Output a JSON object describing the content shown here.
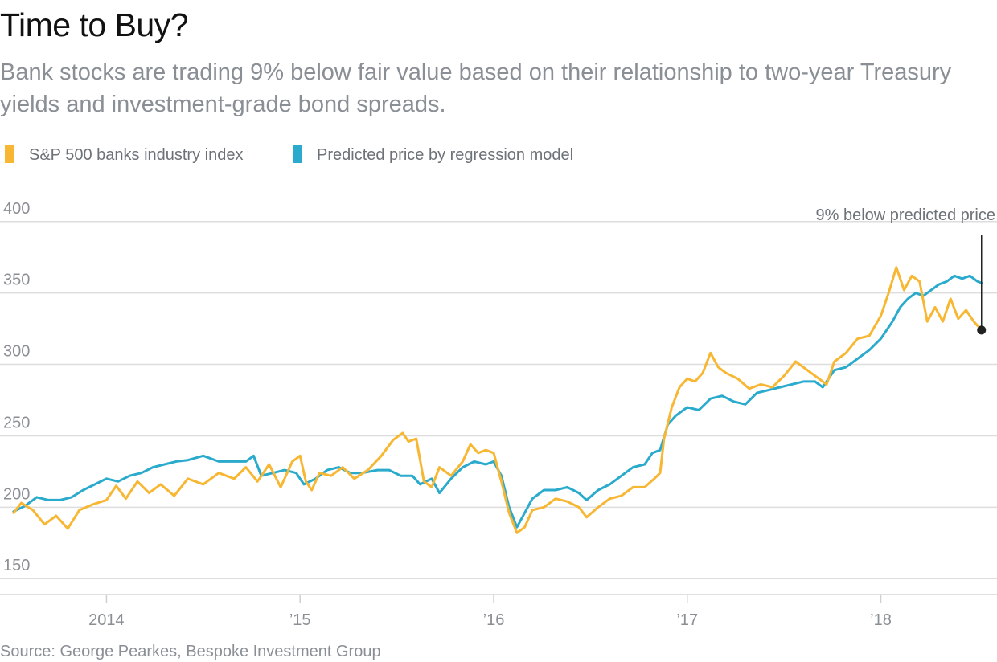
{
  "chart_data": {
    "type": "line",
    "title": "Time to Buy?",
    "subtitle": "Bank stocks are trading 9% below fair value based on their relationship to two-year Treasury yields and investment-grade bond spreads.",
    "source": "Source: George Pearkes, Bespoke Investment Group",
    "ylim": [
      140,
      410
    ],
    "y_ticks": [
      150,
      200,
      250,
      300,
      350,
      400
    ],
    "xlim": [
      2013.45,
      2018.6
    ],
    "x_ticks": [
      {
        "value": 2014,
        "label": "2014"
      },
      {
        "value": 2015,
        "label": "’15"
      },
      {
        "value": 2016,
        "label": "’16"
      },
      {
        "value": 2017,
        "label": "’17"
      },
      {
        "value": 2018,
        "label": "’18"
      }
    ],
    "grid": true,
    "legend_position": "top-left",
    "annotation": {
      "text": "9% below predicted price",
      "x": 2018.52,
      "y": 324
    },
    "series": [
      {
        "name": "S&P 500 banks industry index",
        "color": "#f7b733",
        "points": [
          [
            2013.52,
            196
          ],
          [
            2013.56,
            203
          ],
          [
            2013.62,
            198
          ],
          [
            2013.68,
            188
          ],
          [
            2013.74,
            194
          ],
          [
            2013.8,
            185
          ],
          [
            2013.86,
            198
          ],
          [
            2013.93,
            202
          ],
          [
            2014.0,
            205
          ],
          [
            2014.05,
            215
          ],
          [
            2014.1,
            206
          ],
          [
            2014.16,
            218
          ],
          [
            2014.22,
            210
          ],
          [
            2014.28,
            216
          ],
          [
            2014.35,
            208
          ],
          [
            2014.42,
            220
          ],
          [
            2014.5,
            216
          ],
          [
            2014.58,
            224
          ],
          [
            2014.66,
            220
          ],
          [
            2014.72,
            228
          ],
          [
            2014.78,
            218
          ],
          [
            2014.84,
            230
          ],
          [
            2014.9,
            214
          ],
          [
            2014.96,
            232
          ],
          [
            2015.0,
            236
          ],
          [
            2015.03,
            218
          ],
          [
            2015.06,
            212
          ],
          [
            2015.1,
            224
          ],
          [
            2015.16,
            222
          ],
          [
            2015.22,
            228
          ],
          [
            2015.28,
            220
          ],
          [
            2015.35,
            226
          ],
          [
            2015.42,
            236
          ],
          [
            2015.48,
            247
          ],
          [
            2015.53,
            252
          ],
          [
            2015.56,
            246
          ],
          [
            2015.6,
            248
          ],
          [
            2015.64,
            218
          ],
          [
            2015.68,
            214
          ],
          [
            2015.72,
            228
          ],
          [
            2015.78,
            222
          ],
          [
            2015.84,
            232
          ],
          [
            2015.88,
            244
          ],
          [
            2015.92,
            238
          ],
          [
            2015.96,
            240
          ],
          [
            2016.0,
            238
          ],
          [
            2016.04,
            218
          ],
          [
            2016.08,
            196
          ],
          [
            2016.12,
            182
          ],
          [
            2016.16,
            186
          ],
          [
            2016.2,
            198
          ],
          [
            2016.26,
            200
          ],
          [
            2016.32,
            206
          ],
          [
            2016.38,
            204
          ],
          [
            2016.44,
            200
          ],
          [
            2016.48,
            193
          ],
          [
            2016.54,
            200
          ],
          [
            2016.6,
            206
          ],
          [
            2016.66,
            208
          ],
          [
            2016.72,
            214
          ],
          [
            2016.78,
            214
          ],
          [
            2016.83,
            220
          ],
          [
            2016.86,
            224
          ],
          [
            2016.88,
            248
          ],
          [
            2016.92,
            270
          ],
          [
            2016.96,
            284
          ],
          [
            2017.0,
            290
          ],
          [
            2017.04,
            288
          ],
          [
            2017.08,
            294
          ],
          [
            2017.12,
            308
          ],
          [
            2017.16,
            298
          ],
          [
            2017.2,
            294
          ],
          [
            2017.26,
            290
          ],
          [
            2017.32,
            283
          ],
          [
            2017.38,
            286
          ],
          [
            2017.44,
            284
          ],
          [
            2017.5,
            292
          ],
          [
            2017.56,
            302
          ],
          [
            2017.62,
            296
          ],
          [
            2017.68,
            290
          ],
          [
            2017.72,
            286
          ],
          [
            2017.76,
            302
          ],
          [
            2017.82,
            308
          ],
          [
            2017.88,
            318
          ],
          [
            2017.94,
            320
          ],
          [
            2018.0,
            334
          ],
          [
            2018.04,
            350
          ],
          [
            2018.08,
            368
          ],
          [
            2018.12,
            352
          ],
          [
            2018.16,
            362
          ],
          [
            2018.2,
            358
          ],
          [
            2018.24,
            330
          ],
          [
            2018.28,
            340
          ],
          [
            2018.32,
            330
          ],
          [
            2018.36,
            346
          ],
          [
            2018.4,
            332
          ],
          [
            2018.44,
            338
          ],
          [
            2018.48,
            330
          ],
          [
            2018.52,
            324
          ]
        ]
      },
      {
        "name": "Predicted price by regression model",
        "color": "#2aaacc",
        "points": [
          [
            2013.52,
            197
          ],
          [
            2013.58,
            201
          ],
          [
            2013.64,
            207
          ],
          [
            2013.7,
            205
          ],
          [
            2013.76,
            205
          ],
          [
            2013.82,
            207
          ],
          [
            2013.88,
            212
          ],
          [
            2013.94,
            216
          ],
          [
            2014.0,
            220
          ],
          [
            2014.06,
            218
          ],
          [
            2014.12,
            222
          ],
          [
            2014.18,
            224
          ],
          [
            2014.24,
            228
          ],
          [
            2014.3,
            230
          ],
          [
            2014.36,
            232
          ],
          [
            2014.42,
            233
          ],
          [
            2014.5,
            236
          ],
          [
            2014.58,
            232
          ],
          [
            2014.66,
            232
          ],
          [
            2014.72,
            232
          ],
          [
            2014.76,
            236
          ],
          [
            2014.8,
            222
          ],
          [
            2014.86,
            224
          ],
          [
            2014.92,
            226
          ],
          [
            2014.98,
            224
          ],
          [
            2015.02,
            216
          ],
          [
            2015.08,
            220
          ],
          [
            2015.14,
            226
          ],
          [
            2015.2,
            228
          ],
          [
            2015.26,
            224
          ],
          [
            2015.32,
            224
          ],
          [
            2015.4,
            226
          ],
          [
            2015.46,
            226
          ],
          [
            2015.52,
            222
          ],
          [
            2015.58,
            222
          ],
          [
            2015.62,
            216
          ],
          [
            2015.68,
            220
          ],
          [
            2015.72,
            210
          ],
          [
            2015.78,
            220
          ],
          [
            2015.84,
            228
          ],
          [
            2015.9,
            232
          ],
          [
            2015.96,
            230
          ],
          [
            2016.0,
            232
          ],
          [
            2016.04,
            222
          ],
          [
            2016.08,
            200
          ],
          [
            2016.12,
            186
          ],
          [
            2016.16,
            196
          ],
          [
            2016.2,
            206
          ],
          [
            2016.26,
            212
          ],
          [
            2016.32,
            212
          ],
          [
            2016.38,
            214
          ],
          [
            2016.44,
            210
          ],
          [
            2016.48,
            205
          ],
          [
            2016.54,
            212
          ],
          [
            2016.6,
            216
          ],
          [
            2016.66,
            222
          ],
          [
            2016.72,
            228
          ],
          [
            2016.78,
            230
          ],
          [
            2016.82,
            238
          ],
          [
            2016.86,
            240
          ],
          [
            2016.9,
            258
          ],
          [
            2016.94,
            264
          ],
          [
            2017.0,
            270
          ],
          [
            2017.06,
            268
          ],
          [
            2017.12,
            276
          ],
          [
            2017.18,
            278
          ],
          [
            2017.24,
            274
          ],
          [
            2017.3,
            272
          ],
          [
            2017.36,
            280
          ],
          [
            2017.42,
            282
          ],
          [
            2017.48,
            284
          ],
          [
            2017.54,
            286
          ],
          [
            2017.6,
            288
          ],
          [
            2017.66,
            288
          ],
          [
            2017.7,
            284
          ],
          [
            2017.76,
            296
          ],
          [
            2017.82,
            298
          ],
          [
            2017.88,
            304
          ],
          [
            2017.94,
            310
          ],
          [
            2018.0,
            318
          ],
          [
            2018.06,
            330
          ],
          [
            2018.1,
            340
          ],
          [
            2018.14,
            346
          ],
          [
            2018.18,
            350
          ],
          [
            2018.22,
            348
          ],
          [
            2018.26,
            352
          ],
          [
            2018.3,
            356
          ],
          [
            2018.34,
            358
          ],
          [
            2018.38,
            362
          ],
          [
            2018.42,
            360
          ],
          [
            2018.46,
            362
          ],
          [
            2018.5,
            358
          ],
          [
            2018.52,
            357
          ]
        ]
      }
    ]
  }
}
